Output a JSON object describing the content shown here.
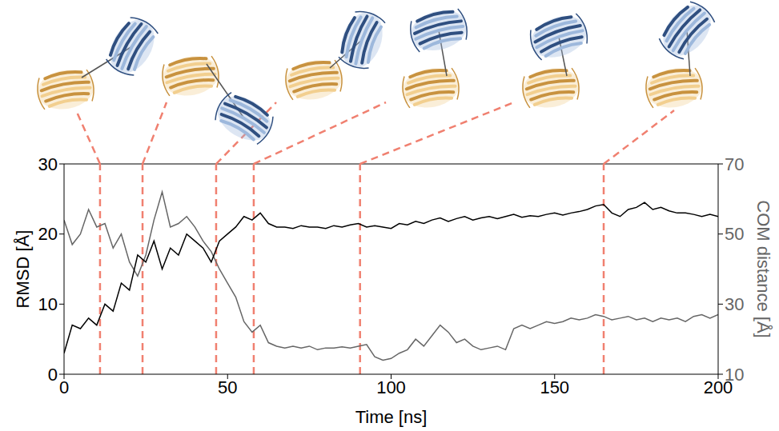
{
  "chart_data": {
    "type": "line",
    "xlabel": "Time [ns]",
    "ylabel": "RMSD [Å]",
    "y2label": "COM distance [Å]",
    "x": [
      0,
      2.5,
      5,
      7.5,
      10,
      12.5,
      15,
      17.5,
      20,
      22.5,
      25,
      27.5,
      30,
      32.5,
      35,
      37.5,
      40,
      42.5,
      45,
      47.5,
      50,
      52.5,
      55,
      57.5,
      60,
      62.5,
      65,
      67.5,
      70,
      72.5,
      75,
      77.5,
      80,
      82.5,
      85,
      87.5,
      90,
      92.5,
      95,
      97.5,
      100,
      102.5,
      105,
      107.5,
      110,
      112.5,
      115,
      117.5,
      120,
      122.5,
      125,
      127.5,
      130,
      132.5,
      135,
      137.5,
      140,
      142.5,
      145,
      147.5,
      150,
      152.5,
      155,
      157.5,
      160,
      162.5,
      165,
      167.5,
      170,
      172.5,
      175,
      177.5,
      180,
      182.5,
      185,
      187.5,
      190,
      192.5,
      195,
      197.5,
      200
    ],
    "series": [
      {
        "color": "#000000",
        "values": [
          3,
          7,
          6.5,
          8,
          7,
          10,
          9,
          13,
          12,
          17,
          16,
          19,
          15,
          18,
          17,
          20,
          19,
          18,
          16,
          19,
          20,
          21,
          22.5,
          22,
          23,
          21.5,
          21,
          21,
          20.8,
          21.2,
          21,
          21,
          20.8,
          21.2,
          21,
          21.3,
          21.5,
          21,
          21.2,
          21,
          20.8,
          21.5,
          21.3,
          21.8,
          21.5,
          22,
          22.3,
          21.8,
          22.2,
          22.5,
          22,
          22.3,
          22.5,
          22.2,
          22.5,
          22.8,
          22.4,
          22.6,
          22.5,
          22.8,
          23,
          22.7,
          23,
          23.2,
          23.5,
          24,
          24.2,
          23,
          22.5,
          23.5,
          23.8,
          24.5,
          23.5,
          23.8,
          23.3,
          23,
          23,
          22.8,
          22.5,
          22.8,
          22.5
        ]
      },
      {
        "color": "#666666",
        "axis": "y2",
        "values": [
          54,
          47,
          50,
          57,
          52,
          53,
          46,
          50,
          42,
          38,
          44,
          54,
          62,
          52,
          53,
          55,
          52,
          48,
          45,
          40,
          36,
          32,
          25,
          22,
          24,
          19,
          18,
          17.5,
          18,
          17.5,
          18,
          17,
          17.5,
          17.5,
          17.8,
          17.5,
          18,
          18.5,
          15,
          14,
          14.5,
          16,
          17,
          20,
          18,
          21,
          24,
          22,
          19,
          20,
          18,
          17,
          17.5,
          18,
          17,
          23,
          24,
          23,
          24,
          25,
          24.5,
          25,
          26,
          25.5,
          26,
          27,
          26.5,
          25.5,
          26,
          26.5,
          25.5,
          26,
          25,
          26,
          25.5,
          26,
          25,
          26.5,
          27,
          26,
          27
        ]
      }
    ],
    "xlim": [
      0,
      200
    ],
    "xticks": [
      0,
      50,
      100,
      150,
      200
    ],
    "ylim": [
      0,
      30
    ],
    "yticks": [
      0,
      10,
      20,
      30
    ],
    "y2lim": [
      10,
      70
    ],
    "y2ticks": [
      10,
      30,
      50,
      70
    ],
    "snapshot_times": [
      11,
      24,
      46.5,
      58,
      90.5,
      165
    ],
    "snapshot_color": "#f08070",
    "grid": false
  }
}
